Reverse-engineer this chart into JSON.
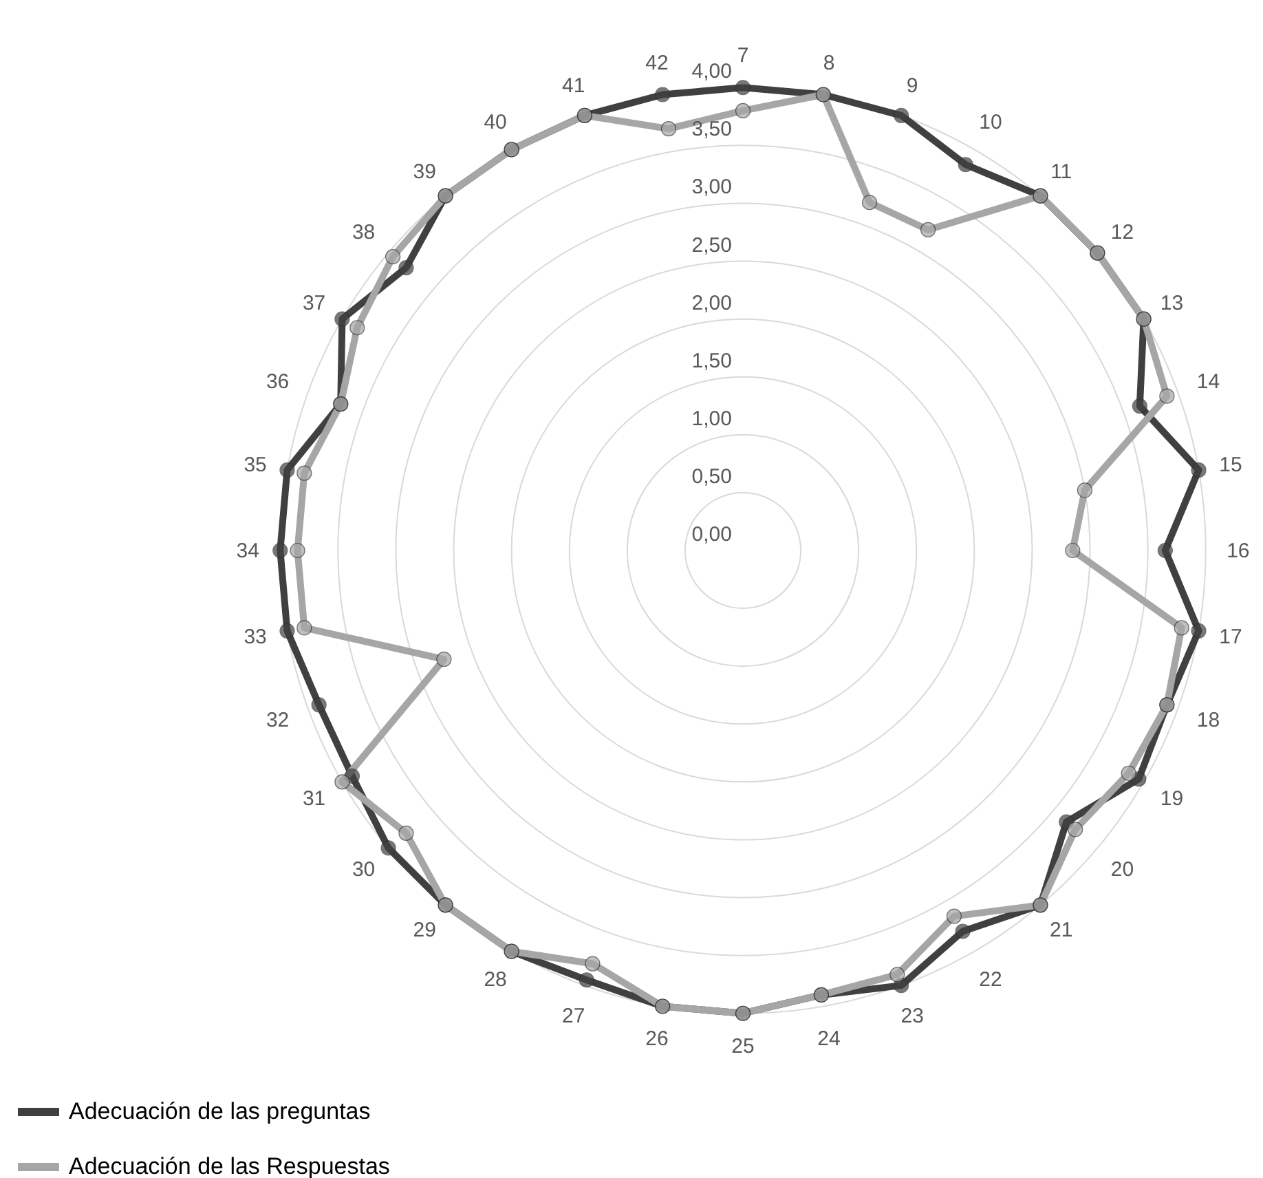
{
  "chart_data": {
    "type": "radar",
    "categories": [
      "7",
      "8",
      "9",
      "10",
      "11",
      "12",
      "13",
      "14",
      "15",
      "16",
      "17",
      "18",
      "19",
      "20",
      "21",
      "22",
      "23",
      "24",
      "25",
      "26",
      "27",
      "28",
      "29",
      "30",
      "31",
      "32",
      "33",
      "34",
      "35",
      "36",
      "37",
      "38",
      "39",
      "40",
      "41",
      "42"
    ],
    "series": [
      {
        "name": "Adecuación de las preguntas",
        "color": "#404040",
        "values": [
          4,
          4,
          4,
          3.85,
          4,
          4,
          4,
          3.65,
          4,
          3.65,
          4,
          3.9,
          3.95,
          3.65,
          4,
          3.8,
          4,
          3.9,
          4,
          4,
          3.95,
          4,
          4,
          4,
          3.9,
          3.9,
          4,
          4,
          4,
          3.7,
          4,
          3.8,
          4,
          4,
          4,
          4
        ]
      },
      {
        "name": "Adecuación de las Respuestas",
        "color": "#a6a6a6",
        "values": [
          3.8,
          4,
          3.2,
          3.2,
          4,
          4,
          4,
          3.9,
          3,
          2.85,
          3.85,
          3.9,
          3.85,
          3.75,
          4,
          3.65,
          3.9,
          3.9,
          4,
          4,
          3.8,
          4,
          4,
          3.8,
          4,
          2.75,
          3.85,
          3.85,
          3.85,
          3.7,
          3.85,
          3.95,
          4,
          4,
          4,
          3.7
        ]
      }
    ],
    "ylim": [
      0,
      4
    ],
    "yticks": [
      {
        "value": 0,
        "label": "0,00"
      },
      {
        "value": 0.5,
        "label": "0,50"
      },
      {
        "value": 1,
        "label": "1,00"
      },
      {
        "value": 1.5,
        "label": "1,50"
      },
      {
        "value": 2,
        "label": "2,00"
      },
      {
        "value": 2.5,
        "label": "2,50"
      },
      {
        "value": 3,
        "label": "3,00"
      },
      {
        "value": 3.5,
        "label": "3,50"
      },
      {
        "value": 4,
        "label": "4,00"
      }
    ],
    "grid": true,
    "legend": "bottom left",
    "marker": "circle",
    "line_style": "solid"
  }
}
